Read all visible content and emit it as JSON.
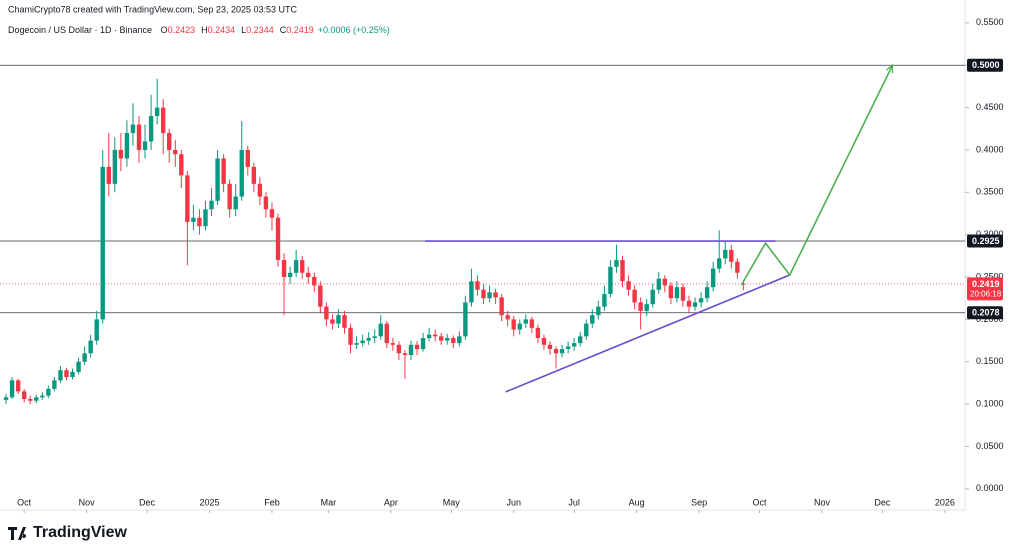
{
  "header": {
    "credit": "ChamiCrypto78 created with TradingView.com, Sep 23, 2025 03:53 UTC",
    "symbol": "Dogecoin / US Dollar · 1D · Binance",
    "ohlc": [
      {
        "label": "O",
        "value": "0.2423"
      },
      {
        "label": "H",
        "value": "0.2434"
      },
      {
        "label": "L",
        "value": "0.2344"
      },
      {
        "label": "C",
        "value": "0.2419"
      }
    ],
    "change": "+0.0006 (+0.25%)"
  },
  "footer": {
    "brand": "TradingView"
  },
  "chart_data": {
    "type": "candlestick",
    "up_color": "#089981",
    "down_color": "#f23645",
    "grid": false,
    "xlim": [
      -12,
      467
    ],
    "ylim": [
      -0.025,
      0.577
    ],
    "xticks": [
      {
        "value": 0,
        "label": "Oct"
      },
      {
        "value": 31,
        "label": "Nov"
      },
      {
        "value": 61,
        "label": "Dec"
      },
      {
        "value": 92,
        "label": "2025"
      },
      {
        "value": 123,
        "label": "Feb"
      },
      {
        "value": 151,
        "label": "Mar"
      },
      {
        "value": 182,
        "label": "Apr"
      },
      {
        "value": 212,
        "label": "May"
      },
      {
        "value": 243,
        "label": "Jun"
      },
      {
        "value": 273,
        "label": "Jul"
      },
      {
        "value": 304,
        "label": "Aug"
      },
      {
        "value": 335,
        "label": "Sep"
      },
      {
        "value": 365,
        "label": "Oct"
      },
      {
        "value": 396,
        "label": "Nov"
      },
      {
        "value": 426,
        "label": "Dec"
      },
      {
        "value": 457,
        "label": "2026"
      }
    ],
    "yticks": [
      {
        "value": 0,
        "label": "0.0000"
      },
      {
        "value": 0.05,
        "label": "0.0500"
      },
      {
        "value": 0.1,
        "label": "0.1000"
      },
      {
        "value": 0.15,
        "label": "0.1500"
      },
      {
        "value": 0.2,
        "label": "0.2000"
      },
      {
        "value": 0.25,
        "label": "0.2500"
      },
      {
        "value": 0.3,
        "label": "0.3000"
      },
      {
        "value": 0.35,
        "label": "0.3500"
      },
      {
        "value": 0.4,
        "label": "0.4000"
      },
      {
        "value": 0.45,
        "label": "0.4500"
      },
      {
        "value": 0.5,
        "label": "0.5000"
      },
      {
        "value": 0.55,
        "label": "0.5500"
      }
    ],
    "x": [
      -9,
      -6,
      -3,
      0,
      3,
      6,
      9,
      12,
      15,
      18,
      21,
      24,
      27,
      30,
      33,
      36,
      39,
      42,
      45,
      48,
      51,
      54,
      57,
      60,
      63,
      66,
      69,
      72,
      75,
      78,
      81,
      84,
      87,
      90,
      93,
      96,
      99,
      102,
      105,
      108,
      111,
      114,
      117,
      120,
      123,
      126,
      129,
      132,
      135,
      138,
      141,
      144,
      147,
      150,
      153,
      156,
      159,
      162,
      165,
      168,
      171,
      174,
      177,
      180,
      183,
      186,
      189,
      192,
      195,
      198,
      201,
      204,
      207,
      210,
      213,
      216,
      219,
      222,
      225,
      228,
      231,
      234,
      237,
      240,
      243,
      246,
      249,
      252,
      255,
      258,
      261,
      264,
      267,
      270,
      273,
      276,
      279,
      282,
      285,
      288,
      291,
      294,
      297,
      300,
      303,
      306,
      309,
      312,
      315,
      318,
      321,
      324,
      327,
      330,
      333,
      336,
      339,
      342,
      345,
      348,
      351,
      354,
      357
    ],
    "open": [
      0.105,
      0.108,
      0.128,
      0.115,
      0.106,
      0.104,
      0.108,
      0.11,
      0.118,
      0.128,
      0.14,
      0.132,
      0.138,
      0.15,
      0.16,
      0.175,
      0.2,
      0.38,
      0.36,
      0.4,
      0.39,
      0.42,
      0.43,
      0.4,
      0.41,
      0.44,
      0.45,
      0.42,
      0.4,
      0.395,
      0.37,
      0.315,
      0.32,
      0.31,
      0.33,
      0.34,
      0.39,
      0.36,
      0.33,
      0.345,
      0.4,
      0.38,
      0.36,
      0.345,
      0.33,
      0.32,
      0.27,
      0.25,
      0.255,
      0.27,
      0.255,
      0.25,
      0.24,
      0.215,
      0.2,
      0.195,
      0.205,
      0.19,
      0.17,
      0.172,
      0.175,
      0.178,
      0.18,
      0.195,
      0.172,
      0.17,
      0.16,
      0.158,
      0.17,
      0.165,
      0.178,
      0.182,
      0.18,
      0.175,
      0.178,
      0.172,
      0.18,
      0.22,
      0.245,
      0.235,
      0.225,
      0.232,
      0.226,
      0.205,
      0.2,
      0.188,
      0.195,
      0.2,
      0.19,
      0.178,
      0.17,
      0.165,
      0.16,
      0.165,
      0.168,
      0.172,
      0.18,
      0.195,
      0.205,
      0.215,
      0.23,
      0.262,
      0.27,
      0.245,
      0.235,
      0.22,
      0.21,
      0.218,
      0.235,
      0.248,
      0.24,
      0.225,
      0.238,
      0.222,
      0.215,
      0.22,
      0.225,
      0.238,
      0.26,
      0.272,
      0.282,
      0.268,
      0.2423
    ],
    "high": [
      0.112,
      0.132,
      0.13,
      0.118,
      0.11,
      0.111,
      0.114,
      0.122,
      0.132,
      0.145,
      0.143,
      0.142,
      0.155,
      0.168,
      0.182,
      0.21,
      0.4,
      0.42,
      0.415,
      0.42,
      0.435,
      0.455,
      0.44,
      0.43,
      0.465,
      0.484,
      0.46,
      0.425,
      0.412,
      0.4,
      0.375,
      0.335,
      0.33,
      0.34,
      0.355,
      0.4,
      0.395,
      0.365,
      0.36,
      0.434,
      0.405,
      0.385,
      0.368,
      0.35,
      0.338,
      0.325,
      0.278,
      0.262,
      0.282,
      0.275,
      0.262,
      0.255,
      0.245,
      0.22,
      0.206,
      0.212,
      0.21,
      0.195,
      0.18,
      0.182,
      0.185,
      0.188,
      0.205,
      0.198,
      0.178,
      0.174,
      0.164,
      0.175,
      0.174,
      0.184,
      0.19,
      0.188,
      0.184,
      0.183,
      0.181,
      0.186,
      0.228,
      0.26,
      0.252,
      0.242,
      0.24,
      0.236,
      0.23,
      0.21,
      0.204,
      0.2,
      0.206,
      0.203,
      0.194,
      0.182,
      0.174,
      0.168,
      0.17,
      0.174,
      0.178,
      0.185,
      0.2,
      0.212,
      0.222,
      0.24,
      0.27,
      0.288,
      0.275,
      0.252,
      0.24,
      0.226,
      0.224,
      0.242,
      0.256,
      0.252,
      0.244,
      0.245,
      0.242,
      0.228,
      0.226,
      0.232,
      0.245,
      0.268,
      0.305,
      0.292,
      0.288,
      0.272,
      0.2434
    ],
    "low": [
      0.1,
      0.106,
      0.112,
      0.102,
      0.1,
      0.101,
      0.105,
      0.107,
      0.115,
      0.125,
      0.128,
      0.129,
      0.135,
      0.146,
      0.155,
      0.17,
      0.195,
      0.345,
      0.35,
      0.375,
      0.38,
      0.405,
      0.385,
      0.39,
      0.4,
      0.43,
      0.395,
      0.385,
      0.38,
      0.355,
      0.264,
      0.305,
      0.3,
      0.305,
      0.322,
      0.335,
      0.35,
      0.32,
      0.322,
      0.34,
      0.37,
      0.35,
      0.335,
      0.32,
      0.305,
      0.262,
      0.205,
      0.242,
      0.25,
      0.248,
      0.242,
      0.232,
      0.208,
      0.192,
      0.188,
      0.19,
      0.183,
      0.16,
      0.165,
      0.168,
      0.17,
      0.172,
      0.176,
      0.166,
      0.163,
      0.152,
      0.13,
      0.152,
      0.158,
      0.162,
      0.174,
      0.174,
      0.17,
      0.17,
      0.166,
      0.168,
      0.176,
      0.215,
      0.228,
      0.218,
      0.22,
      0.218,
      0.198,
      0.192,
      0.18,
      0.182,
      0.19,
      0.184,
      0.172,
      0.164,
      0.158,
      0.142,
      0.155,
      0.16,
      0.163,
      0.168,
      0.176,
      0.19,
      0.2,
      0.21,
      0.226,
      0.255,
      0.238,
      0.228,
      0.212,
      0.188,
      0.204,
      0.214,
      0.23,
      0.232,
      0.218,
      0.22,
      0.215,
      0.208,
      0.21,
      0.214,
      0.22,
      0.233,
      0.255,
      0.265,
      0.26,
      0.248,
      0.2344
    ],
    "close": [
      0.108,
      0.128,
      0.115,
      0.106,
      0.104,
      0.108,
      0.11,
      0.118,
      0.128,
      0.14,
      0.132,
      0.138,
      0.15,
      0.16,
      0.175,
      0.2,
      0.38,
      0.36,
      0.4,
      0.39,
      0.42,
      0.43,
      0.4,
      0.41,
      0.44,
      0.45,
      0.42,
      0.4,
      0.395,
      0.37,
      0.315,
      0.32,
      0.31,
      0.33,
      0.34,
      0.39,
      0.36,
      0.33,
      0.345,
      0.4,
      0.38,
      0.36,
      0.345,
      0.33,
      0.32,
      0.27,
      0.25,
      0.255,
      0.27,
      0.255,
      0.25,
      0.24,
      0.215,
      0.2,
      0.195,
      0.205,
      0.19,
      0.17,
      0.172,
      0.175,
      0.178,
      0.18,
      0.195,
      0.172,
      0.17,
      0.16,
      0.158,
      0.17,
      0.165,
      0.178,
      0.182,
      0.18,
      0.175,
      0.178,
      0.172,
      0.18,
      0.22,
      0.245,
      0.235,
      0.225,
      0.232,
      0.226,
      0.205,
      0.2,
      0.188,
      0.195,
      0.2,
      0.19,
      0.178,
      0.17,
      0.165,
      0.16,
      0.165,
      0.168,
      0.172,
      0.18,
      0.195,
      0.205,
      0.215,
      0.23,
      0.262,
      0.27,
      0.245,
      0.235,
      0.22,
      0.21,
      0.218,
      0.235,
      0.248,
      0.24,
      0.225,
      0.238,
      0.222,
      0.215,
      0.22,
      0.225,
      0.238,
      0.26,
      0.272,
      0.282,
      0.268,
      0.255,
      0.2419
    ],
    "levels": [
      {
        "value": 0.5,
        "label": "0.5000"
      },
      {
        "value": 0.2925,
        "label": "0.2925"
      },
      {
        "value": 0.2078,
        "label": "0.2078"
      }
    ],
    "last_price": {
      "value": 0.2419,
      "label": "0.2419",
      "countdown": "20:06:18",
      "color": "#f23645"
    },
    "drawings": [
      {
        "color": "#6b4bd1",
        "points": [
          [
            199,
            0.2925
          ],
          [
            373,
            0.2925
          ]
        ]
      },
      {
        "color": "#6b4bd1",
        "points": [
          [
            239,
            0.1144
          ],
          [
            380,
            0.2524
          ]
        ]
      },
      {
        "color": "#4caf50",
        "points": [
          [
            356,
            0.2406
          ],
          [
            368,
            0.2901
          ],
          [
            380,
            0.2524
          ],
          [
            431,
            0.5
          ]
        ]
      }
    ]
  }
}
